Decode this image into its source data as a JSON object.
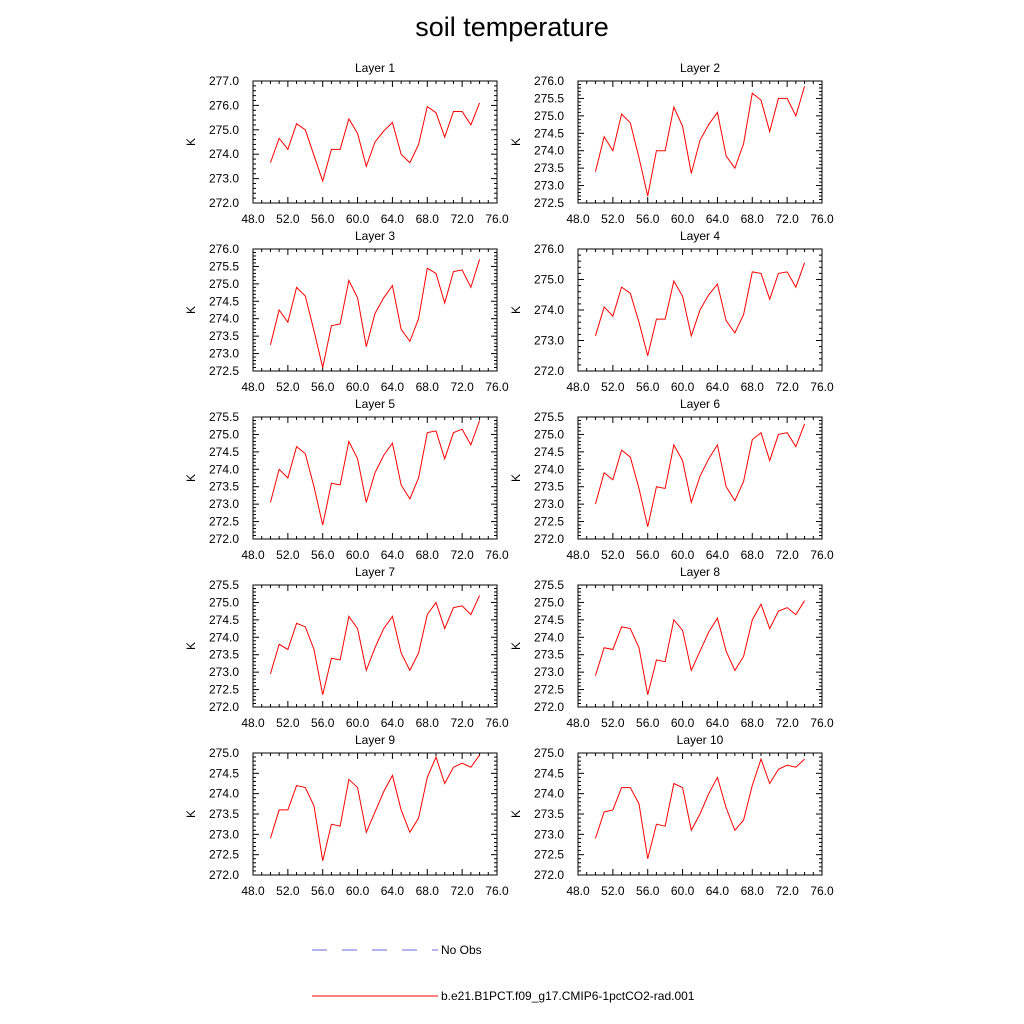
{
  "figure": {
    "title": "soil temperature",
    "legend": [
      {
        "label": "No Obs",
        "color": "#6a6ad8",
        "style": "dashed"
      },
      {
        "label": "b.e21.B1PCT.f09_g17.CMIP6-1pctCO2-rad.001",
        "color": "#ff0000",
        "style": "solid"
      }
    ]
  },
  "chart_data": [
    {
      "type": "line",
      "title": "Layer 1",
      "ylabel": "K",
      "xlim": [
        48,
        76
      ],
      "ylim": [
        272,
        277
      ],
      "xticks": [
        "48.0",
        "52.0",
        "56.0",
        "60.0",
        "64.0",
        "68.0",
        "72.0",
        "76.0"
      ],
      "yticks": [
        "272.0",
        "273.0",
        "274.0",
        "275.0",
        "276.0",
        "277.0"
      ],
      "x": [
        50,
        51,
        52,
        53,
        54,
        55,
        56,
        57,
        58,
        59,
        60,
        61,
        62,
        63,
        64,
        65,
        66,
        67,
        68,
        69,
        70,
        71,
        72,
        73,
        74
      ],
      "series": [
        {
          "name": "b.e21.B1PCT.f09_g17.CMIP6-1pctCO2-rad.001",
          "values": [
            273.65,
            274.65,
            274.2,
            275.25,
            275.0,
            273.95,
            272.9,
            274.2,
            274.2,
            275.45,
            274.85,
            273.5,
            274.5,
            274.95,
            275.3,
            274.0,
            273.65,
            274.4,
            275.95,
            275.7,
            274.7,
            275.75,
            275.75,
            275.2,
            276.1
          ]
        }
      ]
    },
    {
      "type": "line",
      "title": "Layer 2",
      "ylabel": "K",
      "xlim": [
        48,
        76
      ],
      "ylim": [
        272.5,
        276
      ],
      "xticks": [
        "48.0",
        "52.0",
        "56.0",
        "60.0",
        "64.0",
        "68.0",
        "72.0",
        "76.0"
      ],
      "yticks": [
        "272.5",
        "273.0",
        "273.5",
        "274.0",
        "274.5",
        "275.0",
        "275.5",
        "276.0"
      ],
      "x": [
        50,
        51,
        52,
        53,
        54,
        55,
        56,
        57,
        58,
        59,
        60,
        61,
        62,
        63,
        64,
        65,
        66,
        67,
        68,
        69,
        70,
        71,
        72,
        73,
        74
      ],
      "series": [
        {
          "name": "b.e21.B1PCT.f09_g17.CMIP6-1pctCO2-rad.001",
          "values": [
            273.4,
            274.4,
            274.0,
            275.05,
            274.8,
            273.8,
            272.7,
            274.0,
            274.0,
            275.25,
            274.7,
            273.35,
            274.3,
            274.75,
            275.1,
            273.85,
            273.5,
            274.2,
            275.65,
            275.45,
            274.55,
            275.5,
            275.5,
            275.0,
            275.85
          ]
        }
      ]
    },
    {
      "type": "line",
      "title": "Layer 3",
      "ylabel": "K",
      "xlim": [
        48,
        76
      ],
      "ylim": [
        272.5,
        276
      ],
      "xticks": [
        "48.0",
        "52.0",
        "56.0",
        "60.0",
        "64.0",
        "68.0",
        "72.0",
        "76.0"
      ],
      "yticks": [
        "272.5",
        "273.0",
        "273.5",
        "274.0",
        "274.5",
        "275.0",
        "275.5",
        "276.0"
      ],
      "x": [
        50,
        51,
        52,
        53,
        54,
        55,
        56,
        57,
        58,
        59,
        60,
        61,
        62,
        63,
        64,
        65,
        66,
        67,
        68,
        69,
        70,
        71,
        72,
        73,
        74
      ],
      "series": [
        {
          "name": "b.e21.B1PCT.f09_g17.CMIP6-1pctCO2-rad.001",
          "values": [
            273.25,
            274.25,
            273.9,
            274.9,
            274.65,
            273.65,
            272.6,
            273.8,
            273.85,
            275.1,
            274.6,
            273.2,
            274.15,
            274.6,
            274.95,
            273.7,
            273.35,
            274.0,
            275.45,
            275.3,
            274.45,
            275.35,
            275.4,
            274.9,
            275.7
          ]
        }
      ]
    },
    {
      "type": "line",
      "title": "Layer 4",
      "ylabel": "K",
      "xlim": [
        48,
        76
      ],
      "ylim": [
        272,
        276
      ],
      "xticks": [
        "48.0",
        "52.0",
        "56.0",
        "60.0",
        "64.0",
        "68.0",
        "72.0",
        "76.0"
      ],
      "yticks": [
        "272.0",
        "273.0",
        "274.0",
        "275.0",
        "276.0"
      ],
      "x": [
        50,
        51,
        52,
        53,
        54,
        55,
        56,
        57,
        58,
        59,
        60,
        61,
        62,
        63,
        64,
        65,
        66,
        67,
        68,
        69,
        70,
        71,
        72,
        73,
        74
      ],
      "series": [
        {
          "name": "b.e21.B1PCT.f09_g17.CMIP6-1pctCO2-rad.001",
          "values": [
            273.15,
            274.1,
            273.8,
            274.75,
            274.55,
            273.6,
            272.5,
            273.7,
            273.7,
            274.95,
            274.45,
            273.15,
            274.0,
            274.5,
            274.85,
            273.65,
            273.25,
            273.85,
            275.25,
            275.2,
            274.35,
            275.2,
            275.25,
            274.75,
            275.55
          ]
        }
      ]
    },
    {
      "type": "line",
      "title": "Layer 5",
      "ylabel": "K",
      "xlim": [
        48,
        76
      ],
      "ylim": [
        272,
        275.5
      ],
      "xticks": [
        "48.0",
        "52.0",
        "56.0",
        "60.0",
        "64.0",
        "68.0",
        "72.0",
        "76.0"
      ],
      "yticks": [
        "272.0",
        "272.5",
        "273.0",
        "273.5",
        "274.0",
        "274.5",
        "275.0",
        "275.5"
      ],
      "x": [
        50,
        51,
        52,
        53,
        54,
        55,
        56,
        57,
        58,
        59,
        60,
        61,
        62,
        63,
        64,
        65,
        66,
        67,
        68,
        69,
        70,
        71,
        72,
        73,
        74
      ],
      "series": [
        {
          "name": "b.e21.B1PCT.f09_g17.CMIP6-1pctCO2-rad.001",
          "values": [
            273.05,
            274.0,
            273.75,
            274.65,
            274.45,
            273.5,
            272.4,
            273.6,
            273.55,
            274.8,
            274.3,
            273.05,
            273.9,
            274.4,
            274.75,
            273.55,
            273.15,
            273.75,
            275.05,
            275.1,
            274.3,
            275.05,
            275.15,
            274.7,
            275.4
          ]
        }
      ]
    },
    {
      "type": "line",
      "title": "Layer 6",
      "ylabel": "K",
      "xlim": [
        48,
        76
      ],
      "ylim": [
        272,
        275.5
      ],
      "xticks": [
        "48.0",
        "52.0",
        "56.0",
        "60.0",
        "64.0",
        "68.0",
        "72.0",
        "76.0"
      ],
      "yticks": [
        "272.0",
        "272.5",
        "273.0",
        "273.5",
        "274.0",
        "274.5",
        "275.0",
        "275.5"
      ],
      "x": [
        50,
        51,
        52,
        53,
        54,
        55,
        56,
        57,
        58,
        59,
        60,
        61,
        62,
        63,
        64,
        65,
        66,
        67,
        68,
        69,
        70,
        71,
        72,
        73,
        74
      ],
      "series": [
        {
          "name": "b.e21.B1PCT.f09_g17.CMIP6-1pctCO2-rad.001",
          "values": [
            273.0,
            273.9,
            273.7,
            274.55,
            274.35,
            273.45,
            272.35,
            273.5,
            273.45,
            274.7,
            274.25,
            273.05,
            273.8,
            274.3,
            274.7,
            273.5,
            273.1,
            273.65,
            274.85,
            275.05,
            274.25,
            275.0,
            275.05,
            274.65,
            275.3
          ]
        }
      ]
    },
    {
      "type": "line",
      "title": "Layer 7",
      "ylabel": "K",
      "xlim": [
        48,
        76
      ],
      "ylim": [
        272,
        275.5
      ],
      "xticks": [
        "48.0",
        "52.0",
        "56.0",
        "60.0",
        "64.0",
        "68.0",
        "72.0",
        "76.0"
      ],
      "yticks": [
        "272.0",
        "272.5",
        "273.0",
        "273.5",
        "274.0",
        "274.5",
        "275.0",
        "275.5"
      ],
      "x": [
        50,
        51,
        52,
        53,
        54,
        55,
        56,
        57,
        58,
        59,
        60,
        61,
        62,
        63,
        64,
        65,
        66,
        67,
        68,
        69,
        70,
        71,
        72,
        73,
        74
      ],
      "series": [
        {
          "name": "b.e21.B1PCT.f09_g17.CMIP6-1pctCO2-rad.001",
          "values": [
            272.95,
            273.8,
            273.65,
            274.4,
            274.3,
            273.65,
            272.35,
            273.4,
            273.35,
            274.6,
            274.25,
            273.05,
            273.7,
            274.25,
            274.6,
            273.55,
            273.05,
            273.55,
            274.65,
            275.0,
            274.25,
            274.85,
            274.9,
            274.65,
            275.2
          ]
        }
      ]
    },
    {
      "type": "line",
      "title": "Layer 8",
      "ylabel": "K",
      "xlim": [
        48,
        76
      ],
      "ylim": [
        272,
        275.5
      ],
      "xticks": [
        "48.0",
        "52.0",
        "56.0",
        "60.0",
        "64.0",
        "68.0",
        "72.0",
        "76.0"
      ],
      "yticks": [
        "272.0",
        "272.5",
        "273.0",
        "273.5",
        "274.0",
        "274.5",
        "275.0",
        "275.5"
      ],
      "x": [
        50,
        51,
        52,
        53,
        54,
        55,
        56,
        57,
        58,
        59,
        60,
        61,
        62,
        63,
        64,
        65,
        66,
        67,
        68,
        69,
        70,
        71,
        72,
        73,
        74
      ],
      "series": [
        {
          "name": "b.e21.B1PCT.f09_g17.CMIP6-1pctCO2-rad.001",
          "values": [
            272.9,
            273.7,
            273.65,
            274.3,
            274.25,
            273.7,
            272.35,
            273.35,
            273.3,
            274.5,
            274.2,
            273.05,
            273.6,
            274.15,
            274.55,
            273.6,
            273.05,
            273.45,
            274.5,
            274.95,
            274.25,
            274.75,
            274.85,
            274.65,
            275.05
          ]
        }
      ]
    },
    {
      "type": "line",
      "title": "Layer 9",
      "ylabel": "K",
      "xlim": [
        48,
        76
      ],
      "ylim": [
        272,
        275
      ],
      "xticks": [
        "48.0",
        "52.0",
        "56.0",
        "60.0",
        "64.0",
        "68.0",
        "72.0",
        "76.0"
      ],
      "yticks": [
        "272.0",
        "272.5",
        "273.0",
        "273.5",
        "274.0",
        "274.5",
        "275.0"
      ],
      "x": [
        50,
        51,
        52,
        53,
        54,
        55,
        56,
        57,
        58,
        59,
        60,
        61,
        62,
        63,
        64,
        65,
        66,
        67,
        68,
        69,
        70,
        71,
        72,
        73,
        74
      ],
      "series": [
        {
          "name": "b.e21.B1PCT.f09_g17.CMIP6-1pctCO2-rad.001",
          "values": [
            272.9,
            273.6,
            273.6,
            274.2,
            274.15,
            273.7,
            272.35,
            273.25,
            273.2,
            274.35,
            274.15,
            273.05,
            273.55,
            274.05,
            274.45,
            273.6,
            273.05,
            273.4,
            274.4,
            274.9,
            274.25,
            274.65,
            274.75,
            274.65,
            274.95
          ]
        }
      ]
    },
    {
      "type": "line",
      "title": "Layer 10",
      "ylabel": "K",
      "xlim": [
        48,
        76
      ],
      "ylim": [
        272,
        275
      ],
      "xticks": [
        "48.0",
        "52.0",
        "56.0",
        "60.0",
        "64.0",
        "68.0",
        "72.0",
        "76.0"
      ],
      "yticks": [
        "272.0",
        "272.5",
        "273.0",
        "273.5",
        "274.0",
        "274.5",
        "275.0"
      ],
      "x": [
        50,
        51,
        52,
        53,
        54,
        55,
        56,
        57,
        58,
        59,
        60,
        61,
        62,
        63,
        64,
        65,
        66,
        67,
        68,
        69,
        70,
        71,
        72,
        73,
        74
      ],
      "series": [
        {
          "name": "b.e21.B1PCT.f09_g17.CMIP6-1pctCO2-rad.001",
          "values": [
            272.9,
            273.55,
            273.6,
            274.15,
            274.15,
            273.75,
            272.4,
            273.25,
            273.2,
            274.25,
            274.15,
            273.1,
            273.5,
            274.0,
            274.4,
            273.65,
            273.1,
            273.35,
            274.2,
            274.85,
            274.25,
            274.6,
            274.7,
            274.65,
            274.85
          ]
        }
      ]
    }
  ]
}
